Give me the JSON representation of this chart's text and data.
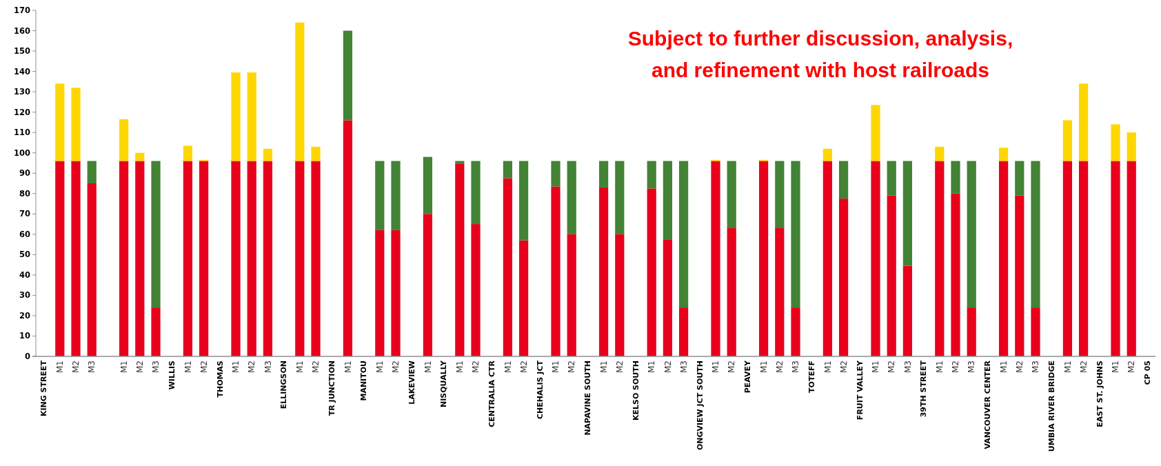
{
  "chart_data": {
    "type": "bar",
    "stacked": true,
    "categories": [
      "KING STREET",
      "M1",
      "M2",
      "M3",
      null,
      "M1",
      "M2",
      "M3",
      "WILLIS",
      "M1",
      "M2",
      "THOMAS",
      "M1",
      "M2",
      "M3",
      "ELLINGSON",
      "M1",
      "M2",
      "TR JUNCTION",
      "M1",
      "MANITOU",
      "M1",
      "M2",
      "LAKEVIEW",
      "M1",
      "NISQUALLY",
      "M1",
      "M2",
      "CENTRALIA CTR",
      "M1",
      "M2",
      "CHEHALIS JCT",
      "M1",
      "M2",
      "NAPAVINE SOUTH",
      "M1",
      "M2",
      "KELSO SOUTH",
      "M1",
      "M2",
      "M3",
      "ONGVIEW JCT SOUTH",
      "M1",
      "M2",
      "PEAVEY",
      "M1",
      "M2",
      "M3",
      "TOTEFF",
      "M1",
      "M2",
      "FRUIT VALLEY",
      "M1",
      "M2",
      "M3",
      "39TH STREET",
      "M1",
      "M2",
      "M3",
      "VANCOUVER CENTER",
      "M1",
      "M2",
      "M3",
      "UMBIA RIVER BRIDGE",
      "M1",
      "M2",
      "EAST ST. JOHNS",
      "M1",
      "M2",
      "CP 05"
    ],
    "series": [
      {
        "color": "#e8001c",
        "values": [
          null,
          96,
          96,
          85,
          null,
          96,
          96,
          24,
          null,
          96,
          96,
          null,
          96,
          96,
          96,
          null,
          96,
          96,
          null,
          116,
          null,
          62,
          62,
          null,
          70,
          null,
          94.5,
          65,
          null,
          87.5,
          57,
          null,
          83.5,
          60,
          null,
          83,
          60,
          null,
          82.5,
          57.5,
          24,
          null,
          96,
          63,
          null,
          96,
          63,
          24,
          null,
          96,
          77.5,
          null,
          96,
          79,
          44.5,
          null,
          96,
          80,
          24,
          null,
          96,
          79,
          24,
          null,
          96,
          96,
          null,
          96,
          96,
          null
        ]
      },
      {
        "color": "#428334",
        "values": [
          null,
          0,
          0,
          11,
          null,
          0,
          0,
          72,
          null,
          0,
          0,
          null,
          0,
          0,
          0,
          null,
          0,
          0,
          null,
          44,
          null,
          34,
          34,
          null,
          28,
          null,
          1.5,
          31,
          null,
          8.5,
          39,
          null,
          12.5,
          36,
          null,
          13,
          36,
          null,
          13.5,
          38.5,
          72,
          null,
          0,
          33,
          null,
          0,
          33,
          72,
          null,
          0,
          18.5,
          null,
          0,
          17,
          51.5,
          null,
          0,
          16,
          72,
          null,
          0,
          17,
          72,
          null,
          0,
          0,
          null,
          0,
          0,
          null
        ]
      },
      {
        "color": "#ffd700",
        "values": [
          null,
          38,
          36,
          0,
          null,
          20.5,
          4,
          0,
          null,
          7.5,
          0.5,
          null,
          43.5,
          43.5,
          6,
          null,
          68,
          7,
          null,
          0,
          null,
          0,
          0,
          null,
          0,
          null,
          0,
          0,
          null,
          0,
          0,
          null,
          0,
          0,
          null,
          0,
          0,
          null,
          0,
          0,
          0,
          null,
          0.5,
          0,
          null,
          0.5,
          0,
          0,
          null,
          6,
          0,
          null,
          27.5,
          0,
          0,
          null,
          7,
          0,
          0,
          null,
          6.5,
          0,
          0,
          null,
          20,
          38,
          null,
          18,
          14,
          null
        ]
      }
    ],
    "ylim": [
      0,
      170
    ],
    "yticks": [
      0,
      10,
      20,
      30,
      40,
      50,
      60,
      70,
      80,
      90,
      100,
      110,
      120,
      130,
      140,
      150,
      160,
      170
    ],
    "annotations": [
      "Subject to further discussion, analysis, and refinement with host railroads"
    ]
  }
}
